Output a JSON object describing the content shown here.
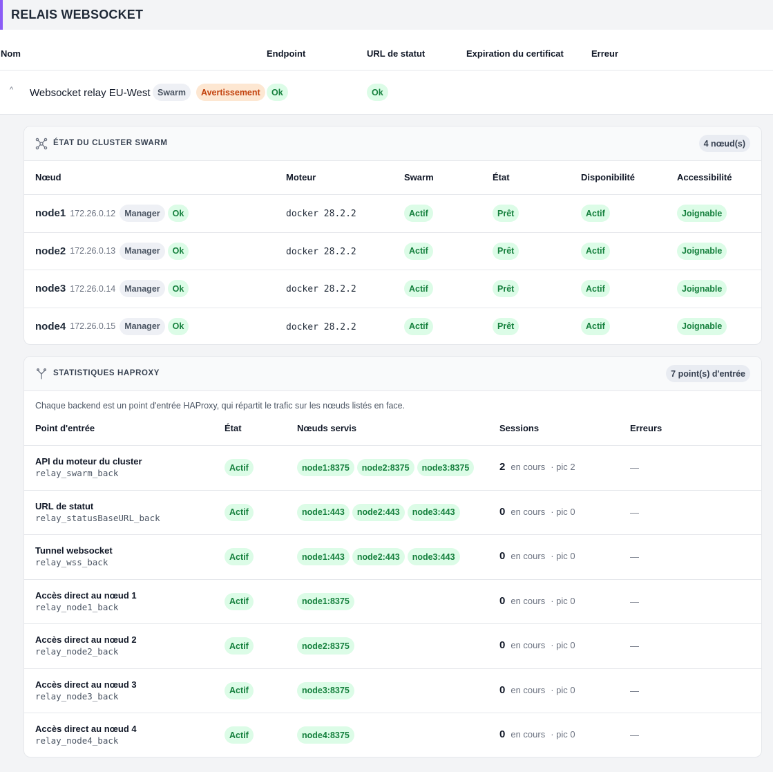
{
  "header": {
    "title": "RELAIS WEBSOCKET"
  },
  "outer_table": {
    "columns": [
      "Nom",
      "Endpoint",
      "URL de statut",
      "Expiration du certificat",
      "Erreur"
    ]
  },
  "relay": {
    "name": "Websocket relay EU-West",
    "badges": [
      "Swarm",
      "Avertissement",
      "Ok"
    ],
    "status_url_badge": "Ok",
    "caret": "^"
  },
  "swarm": {
    "title": "ÉTAT DU CLUSTER SWARM",
    "count": "4 nœud(s)",
    "columns": [
      "Nœud",
      "Moteur",
      "Swarm",
      "État",
      "Disponibilité",
      "Accessibilité"
    ],
    "nodes": [
      {
        "name": "node1",
        "ip": "172.26.0.12",
        "role": "Manager",
        "status": "Ok",
        "engine": "docker 28.2.2",
        "swarm": "Actif",
        "state": "Prêt",
        "availability": "Actif",
        "reachability": "Joignable"
      },
      {
        "name": "node2",
        "ip": "172.26.0.13",
        "role": "Manager",
        "status": "Ok",
        "engine": "docker 28.2.2",
        "swarm": "Actif",
        "state": "Prêt",
        "availability": "Actif",
        "reachability": "Joignable"
      },
      {
        "name": "node3",
        "ip": "172.26.0.14",
        "role": "Manager",
        "status": "Ok",
        "engine": "docker 28.2.2",
        "swarm": "Actif",
        "state": "Prêt",
        "availability": "Actif",
        "reachability": "Joignable"
      },
      {
        "name": "node4",
        "ip": "172.26.0.15",
        "role": "Manager",
        "status": "Ok",
        "engine": "docker 28.2.2",
        "swarm": "Actif",
        "state": "Prêt",
        "availability": "Actif",
        "reachability": "Joignable"
      }
    ]
  },
  "haproxy": {
    "title": "STATISTIQUES HAPROXY",
    "count": "7 point(s) d'entrée",
    "description": "Chaque backend est un point d'entrée HAProxy, qui répartit le trafic sur les nœuds listés en face.",
    "columns": [
      "Point d'entrée",
      "État",
      "Nœuds servis",
      "Sessions",
      "Erreurs"
    ],
    "sessions_current_label": "en cours",
    "sessions_peak_label": "· pic",
    "entries": [
      {
        "title": "API du moteur du cluster",
        "backend": "relay_swarm_back",
        "state": "Actif",
        "nodes": [
          "node1:8375",
          "node2:8375",
          "node3:8375"
        ],
        "current": "2",
        "peak": "2",
        "errors": "—"
      },
      {
        "title": "URL de statut",
        "backend": "relay_statusBaseURL_back",
        "state": "Actif",
        "nodes": [
          "node1:443",
          "node2:443",
          "node3:443"
        ],
        "current": "0",
        "peak": "0",
        "errors": "—"
      },
      {
        "title": "Tunnel websocket",
        "backend": "relay_wss_back",
        "state": "Actif",
        "nodes": [
          "node1:443",
          "node2:443",
          "node3:443"
        ],
        "current": "0",
        "peak": "0",
        "errors": "—"
      },
      {
        "title": "Accès direct au nœud 1",
        "backend": "relay_node1_back",
        "state": "Actif",
        "nodes": [
          "node1:8375"
        ],
        "current": "0",
        "peak": "0",
        "errors": "—"
      },
      {
        "title": "Accès direct au nœud 2",
        "backend": "relay_node2_back",
        "state": "Actif",
        "nodes": [
          "node2:8375"
        ],
        "current": "0",
        "peak": "0",
        "errors": "—"
      },
      {
        "title": "Accès direct au nœud 3",
        "backend": "relay_node3_back",
        "state": "Actif",
        "nodes": [
          "node3:8375"
        ],
        "current": "0",
        "peak": "0",
        "errors": "—"
      },
      {
        "title": "Accès direct au nœud 4",
        "backend": "relay_node4_back",
        "state": "Actif",
        "nodes": [
          "node4:8375"
        ],
        "current": "0",
        "peak": "0",
        "errors": "—"
      }
    ]
  },
  "icons": {
    "swarm": "cluster-icon",
    "haproxy": "fork-icon",
    "caret": "chevron-up-icon"
  },
  "colors": {
    "accent": "#8b5cf6",
    "ok_bg": "#dcfce7",
    "ok_fg": "#15803d",
    "warn_bg": "#fde7d2",
    "warn_fg": "#c2410c"
  }
}
